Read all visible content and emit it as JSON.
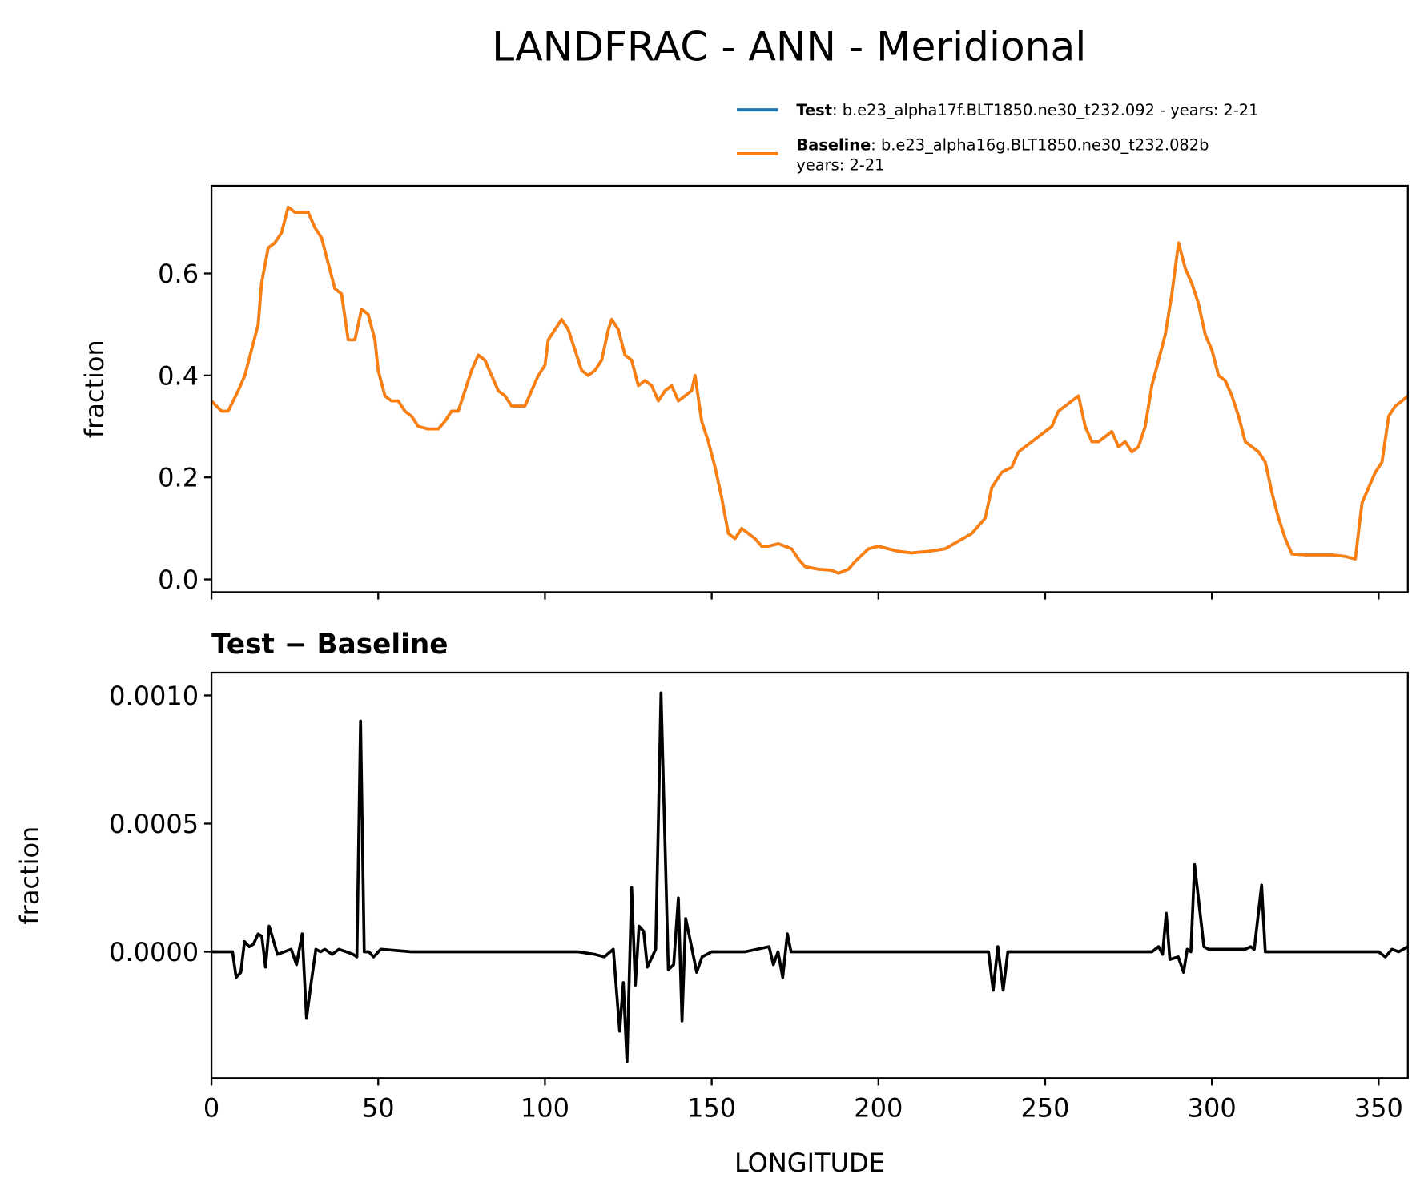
{
  "chart_data": [
    {
      "type": "line",
      "title": "LANDFRAC - ANN - Meridional",
      "ylabel": "fraction",
      "xlim": [
        0,
        358.75
      ],
      "xticks": [
        0,
        50,
        100,
        150,
        200,
        250,
        300,
        350
      ],
      "xticklabels": false,
      "ylim": [
        -0.025,
        0.772
      ],
      "yticks": [
        {
          "value": 0,
          "label": "0.0"
        },
        0.2,
        0.4,
        0.6
      ],
      "x": [
        0,
        3,
        5,
        8,
        10,
        12,
        14,
        15,
        17,
        19,
        21,
        23,
        25,
        27,
        29,
        31,
        33,
        35,
        37,
        39,
        41,
        43,
        45,
        47,
        49,
        50,
        52,
        54,
        56,
        58,
        60,
        62,
        65,
        68,
        70,
        72,
        74,
        76,
        78,
        80,
        82,
        84,
        86,
        88,
        90,
        92,
        94,
        96,
        98,
        100,
        101,
        103,
        105,
        107,
        109,
        111,
        113,
        115,
        117,
        119,
        120,
        122,
        124,
        126,
        128,
        130,
        132,
        134,
        136,
        138,
        140,
        142,
        144,
        145,
        147,
        149,
        151,
        153,
        155,
        157,
        159,
        161,
        163,
        165,
        167,
        170,
        172,
        174,
        176,
        178,
        182,
        186,
        188,
        191,
        193,
        197,
        200,
        203,
        206,
        210,
        215,
        220,
        224,
        228,
        232,
        234,
        237,
        240,
        242,
        244,
        246,
        248,
        250,
        252,
        254,
        256,
        258,
        260,
        262,
        264,
        266,
        268,
        270,
        272,
        274,
        276,
        278,
        280,
        282,
        284,
        286,
        288,
        290,
        292,
        294,
        296,
        298,
        300,
        302,
        304,
        306,
        308,
        310,
        312,
        314,
        316,
        318,
        320,
        322,
        324,
        328,
        336,
        340,
        343,
        345,
        347,
        349,
        351,
        353,
        355,
        357,
        358.75
      ],
      "series": [
        {
          "name": "Test",
          "description": [
            ": b.e23_alpha17f.BLT1850.ne30_t232.092 - years: 2-21"
          ],
          "color": "#1f77b4",
          "values": [
            0.35,
            0.33,
            0.33,
            0.37,
            0.4,
            0.45,
            0.5,
            0.58,
            0.65,
            0.66,
            0.68,
            0.73,
            0.72,
            0.72,
            0.72,
            0.69,
            0.67,
            0.62,
            0.57,
            0.56,
            0.47,
            0.47,
            0.53,
            0.52,
            0.47,
            0.41,
            0.36,
            0.35,
            0.35,
            0.33,
            0.32,
            0.3,
            0.295,
            0.295,
            0.31,
            0.33,
            0.33,
            0.37,
            0.41,
            0.44,
            0.43,
            0.4,
            0.37,
            0.36,
            0.34,
            0.34,
            0.34,
            0.37,
            0.4,
            0.42,
            0.47,
            0.49,
            0.51,
            0.49,
            0.45,
            0.41,
            0.4,
            0.41,
            0.43,
            0.49,
            0.51,
            0.49,
            0.44,
            0.43,
            0.38,
            0.39,
            0.38,
            0.35,
            0.37,
            0.38,
            0.35,
            0.36,
            0.37,
            0.4,
            0.31,
            0.27,
            0.22,
            0.16,
            0.09,
            0.08,
            0.1,
            0.09,
            0.08,
            0.065,
            0.065,
            0.07,
            0.065,
            0.06,
            0.04,
            0.025,
            0.02,
            0.018,
            0.012,
            0.02,
            0.035,
            0.06,
            0.065,
            0.06,
            0.055,
            0.052,
            0.055,
            0.06,
            0.075,
            0.09,
            0.12,
            0.18,
            0.21,
            0.22,
            0.25,
            0.26,
            0.27,
            0.28,
            0.29,
            0.3,
            0.33,
            0.34,
            0.35,
            0.36,
            0.3,
            0.27,
            0.27,
            0.28,
            0.29,
            0.26,
            0.27,
            0.25,
            0.26,
            0.3,
            0.38,
            0.43,
            0.48,
            0.56,
            0.66,
            0.61,
            0.58,
            0.54,
            0.48,
            0.45,
            0.4,
            0.39,
            0.36,
            0.32,
            0.27,
            0.26,
            0.25,
            0.23,
            0.17,
            0.12,
            0.08,
            0.05,
            0.048,
            0.048,
            0.045,
            0.04,
            0.15,
            0.18,
            0.21,
            0.23,
            0.32,
            0.34,
            0.35,
            0.36
          ]
        },
        {
          "name": "Baseline",
          "description": [
            ": b.e23_alpha16g.BLT1850.ne30_t232.082b",
            "years: 2-21"
          ],
          "color": "#ff7f0e",
          "values": [
            0.35,
            0.33,
            0.33,
            0.37,
            0.4,
            0.45,
            0.5,
            0.58,
            0.65,
            0.66,
            0.68,
            0.73,
            0.72,
            0.72,
            0.72,
            0.69,
            0.67,
            0.62,
            0.57,
            0.56,
            0.47,
            0.47,
            0.53,
            0.52,
            0.47,
            0.41,
            0.36,
            0.35,
            0.35,
            0.33,
            0.32,
            0.3,
            0.295,
            0.295,
            0.31,
            0.33,
            0.33,
            0.37,
            0.41,
            0.44,
            0.43,
            0.4,
            0.37,
            0.36,
            0.34,
            0.34,
            0.34,
            0.37,
            0.4,
            0.42,
            0.47,
            0.49,
            0.51,
            0.49,
            0.45,
            0.41,
            0.4,
            0.41,
            0.43,
            0.49,
            0.51,
            0.49,
            0.44,
            0.43,
            0.38,
            0.39,
            0.38,
            0.35,
            0.37,
            0.38,
            0.35,
            0.36,
            0.37,
            0.4,
            0.31,
            0.27,
            0.22,
            0.16,
            0.09,
            0.08,
            0.1,
            0.09,
            0.08,
            0.065,
            0.065,
            0.07,
            0.065,
            0.06,
            0.04,
            0.025,
            0.02,
            0.018,
            0.012,
            0.02,
            0.035,
            0.06,
            0.065,
            0.06,
            0.055,
            0.052,
            0.055,
            0.06,
            0.075,
            0.09,
            0.12,
            0.18,
            0.21,
            0.22,
            0.25,
            0.26,
            0.27,
            0.28,
            0.29,
            0.3,
            0.33,
            0.34,
            0.35,
            0.36,
            0.3,
            0.27,
            0.27,
            0.28,
            0.29,
            0.26,
            0.27,
            0.25,
            0.26,
            0.3,
            0.38,
            0.43,
            0.48,
            0.56,
            0.66,
            0.61,
            0.58,
            0.54,
            0.48,
            0.45,
            0.4,
            0.39,
            0.36,
            0.32,
            0.27,
            0.26,
            0.25,
            0.23,
            0.17,
            0.12,
            0.08,
            0.05,
            0.048,
            0.048,
            0.045,
            0.04,
            0.15,
            0.18,
            0.21,
            0.23,
            0.32,
            0.34,
            0.35,
            0.36
          ]
        }
      ]
    },
    {
      "type": "line",
      "title": "Test − Baseline",
      "ylabel": "fraction",
      "xlabel": "LONGITUDE",
      "xlim": [
        0,
        358.75
      ],
      "xticks": [
        0,
        50,
        100,
        150,
        200,
        250,
        300,
        350
      ],
      "xticklabels": true,
      "ylim": [
        -0.000493,
        0.001089
      ],
      "yticks": [
        {
          "value": 0,
          "label": "0.0000"
        },
        {
          "value": 0.0005,
          "label": "0.0005"
        },
        {
          "value": 0.001,
          "label": "0.0010"
        }
      ],
      "x": [
        0,
        6.3,
        7.4,
        8.8,
        9.9,
        11.3,
        12.6,
        14,
        15.1,
        16.2,
        17.3,
        19.8,
        23.9,
        25.5,
        27.2,
        28.5,
        29.9,
        31.3,
        32.7,
        34,
        36.2,
        38.2,
        40.4,
        42.5,
        43.6,
        44.7,
        45.8,
        47.2,
        48.6,
        50.8,
        60,
        80,
        100,
        110,
        115,
        117.8,
        120.5,
        122.4,
        123.5,
        124.6,
        126,
        127.1,
        128.2,
        129.6,
        130.7,
        133.2,
        134.8,
        137,
        138.6,
        140,
        141.1,
        142.2,
        143.8,
        145.5,
        147.1,
        150,
        160,
        167.2,
        168.5,
        169.9,
        171.3,
        172.7,
        173.8,
        200,
        233,
        234.4,
        235.8,
        237.4,
        238.8,
        260,
        282,
        284,
        285.2,
        286.3,
        287.4,
        289.9,
        291.5,
        292.6,
        293.7,
        294.8,
        297.6,
        299,
        305,
        310,
        311.6,
        312.7,
        314.9,
        316,
        330,
        350,
        352,
        354,
        356,
        358.75
      ],
      "series": [
        {
          "color": "#000000",
          "values": [
            0,
            0,
            -0.0001,
            -8e-05,
            4e-05,
            2e-05,
            3e-05,
            7e-05,
            6e-05,
            -6e-05,
            0.0001,
            -1e-05,
            1e-05,
            -5e-05,
            7e-05,
            -0.00026,
            -0.00012,
            1e-05,
            0,
            1e-05,
            -1e-05,
            1e-05,
            0,
            -1e-05,
            -2e-05,
            0.0009,
            0,
            0,
            -2e-05,
            1e-05,
            0,
            0,
            0,
            0,
            -1e-05,
            -2e-05,
            1e-05,
            -0.00031,
            -0.00012,
            -0.00043,
            0.00025,
            -0.00013,
            0.0001,
            8e-05,
            -6e-05,
            1e-05,
            0.00101,
            -7e-05,
            -5e-05,
            0.00021,
            -0.00027,
            0.00013,
            3e-05,
            -8e-05,
            -2e-05,
            0,
            0,
            2e-05,
            -5e-05,
            0,
            -0.0001,
            7e-05,
            0,
            0,
            0,
            -0.00015,
            2e-05,
            -0.00015,
            0,
            0,
            0,
            2e-05,
            -1e-05,
            0.00015,
            -3e-05,
            -2e-05,
            -8e-05,
            1e-05,
            0,
            0.00034,
            2e-05,
            1e-05,
            1e-05,
            1e-05,
            2e-05,
            1e-05,
            0.00026,
            0,
            0,
            0,
            -2e-05,
            1e-05,
            0,
            2e-05
          ]
        }
      ]
    }
  ]
}
